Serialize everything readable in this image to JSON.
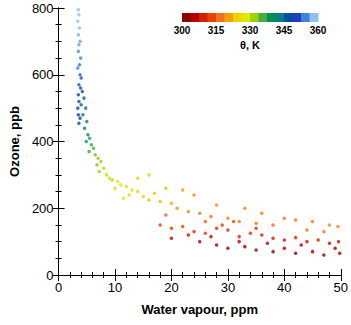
{
  "chart_data": {
    "type": "scatter",
    "x_label": "Water vapour, ppm",
    "y_label": "Ozone, ppb",
    "xlim": [
      0,
      50
    ],
    "xticks": [
      0,
      10,
      20,
      30,
      40,
      50
    ],
    "ylim": [
      0,
      800
    ],
    "yticks": [
      0,
      200,
      400,
      600,
      800
    ],
    "grid": false,
    "marker": "circle",
    "colorbar_title": "θ, K",
    "colorbar_range": [
      300,
      360
    ],
    "colorbar_ticks": [
      300,
      315,
      330,
      345,
      360
    ],
    "x": [
      3.5,
      3.6,
      3.4,
      3.7,
      3.5,
      3.8,
      3.6,
      3.5,
      3.9,
      3.7,
      3.4,
      3.8,
      4.0,
      3.6,
      3.9,
      3.5,
      3.6,
      3.4,
      3.5,
      3.8,
      3.6,
      4.2,
      4.5,
      4.0,
      4.8,
      4.3,
      5.0,
      4.6,
      5.2,
      5.5,
      4.9,
      5.8,
      6.2,
      5.4,
      6.5,
      7.0,
      7.5,
      6.8,
      8.0,
      7.2,
      8.5,
      9.0,
      9.5,
      10.5,
      11,
      12,
      10,
      13,
      14,
      12.5,
      15,
      11.5,
      16,
      18,
      20,
      17,
      19,
      22,
      24,
      14,
      16,
      21,
      23,
      25,
      27,
      30,
      32,
      35,
      38,
      40,
      42,
      45,
      48,
      49.5,
      28,
      33,
      36,
      44,
      47,
      19,
      26,
      18,
      20,
      22,
      24,
      26,
      28,
      30,
      32,
      34,
      36,
      38,
      40,
      42,
      44,
      46,
      48,
      49.6,
      29,
      31,
      35,
      20,
      25,
      28,
      30,
      33,
      35,
      38,
      40,
      42,
      45,
      47,
      49.8,
      37,
      43,
      49,
      32,
      27,
      23
    ],
    "values": [
      795,
      780,
      760,
      740,
      720,
      700,
      690,
      670,
      650,
      630,
      620,
      600,
      590,
      570,
      560,
      540,
      520,
      500,
      480,
      470,
      455,
      550,
      530,
      510,
      500,
      480,
      460,
      440,
      420,
      410,
      400,
      390,
      380,
      370,
      360,
      350,
      340,
      330,
      320,
      310,
      300,
      290,
      285,
      280,
      270,
      265,
      260,
      255,
      250,
      240,
      235,
      230,
      225,
      220,
      215,
      245,
      260,
      255,
      240,
      290,
      300,
      200,
      190,
      185,
      175,
      170,
      160,
      155,
      150,
      170,
      165,
      160,
      150,
      145,
      210,
      200,
      185,
      135,
      130,
      180,
      160,
      150,
      140,
      145,
      130,
      125,
      140,
      135,
      115,
      125,
      120,
      110,
      105,
      112,
      100,
      105,
      95,
      100,
      150,
      160,
      140,
      110,
      100,
      90,
      80,
      85,
      75,
      70,
      80,
      65,
      70,
      60,
      65,
      95,
      90,
      80,
      100,
      115,
      120
    ],
    "theta": [
      362,
      361,
      360,
      360,
      359,
      358,
      358,
      357,
      356,
      355,
      356,
      354,
      353,
      353,
      352,
      352,
      351,
      352,
      350,
      351,
      350,
      347,
      345,
      346,
      343,
      344,
      341,
      342,
      340,
      338,
      339,
      337,
      336,
      337,
      334,
      333,
      332,
      333,
      331,
      332,
      330,
      329,
      330,
      328,
      328,
      327,
      329,
      326,
      325,
      326,
      324,
      327,
      323,
      322,
      321,
      323,
      322,
      320,
      319,
      325,
      324,
      319,
      318,
      317,
      316,
      318,
      317,
      316,
      315,
      317,
      316,
      317,
      318,
      318,
      319,
      318,
      317,
      316,
      317,
      315,
      314,
      312,
      311,
      312,
      310,
      311,
      310,
      309,
      309,
      310,
      308,
      308,
      307,
      309,
      307,
      308,
      306,
      307,
      311,
      312,
      310,
      305,
      304,
      303,
      303,
      302,
      302,
      301,
      302,
      301,
      302,
      300,
      301,
      304,
      303,
      302,
      304,
      305,
      306
    ]
  }
}
